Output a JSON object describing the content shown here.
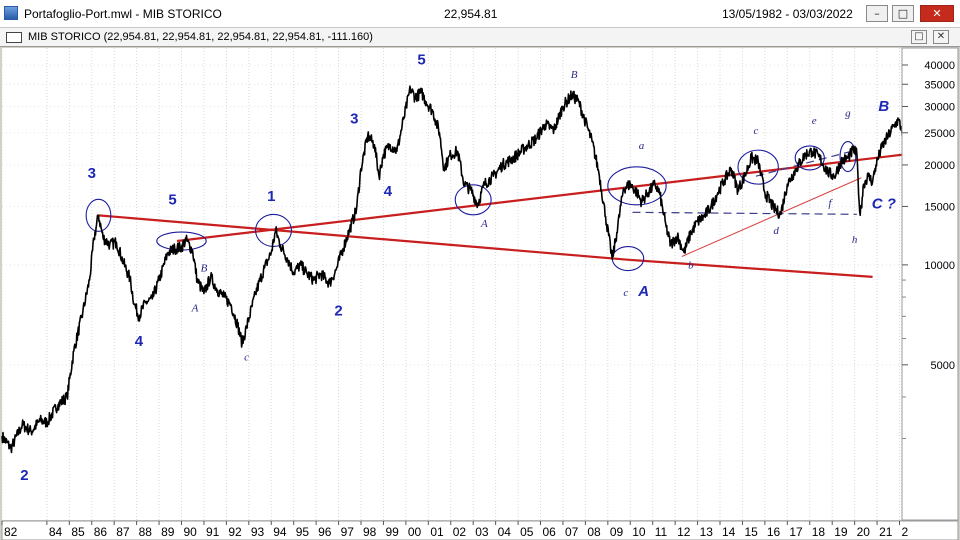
{
  "window": {
    "title": "Portafoglio-Port.mwl  -  MIB STORICO",
    "last_value": "22,954.81",
    "date_range": "13/05/1982 - 03/03/2022",
    "buttons": {
      "minimize": "–",
      "maximize": "□",
      "close": "✕"
    }
  },
  "chart_window": {
    "title": "MIB STORICO (22,954.81, 22,954.81, 22,954.81, 22,954.81, -111.160)",
    "buttons": {
      "restore": "□",
      "close": "✕"
    }
  },
  "chart_data": {
    "type": "line",
    "title": "MIB STORICO",
    "y_scale": "log",
    "ylim": [
      3000,
      45000
    ],
    "xlim": [
      1982.0,
      2022.2
    ],
    "grid": true,
    "y_ticks": [
      {
        "value": 40000,
        "label": "40000"
      },
      {
        "value": 35000,
        "label": "35000"
      },
      {
        "value": 30000,
        "label": "30000"
      },
      {
        "value": 25000,
        "label": "25000"
      },
      {
        "value": 20000,
        "label": "20000"
      },
      {
        "value": 15000,
        "label": "15000"
      },
      {
        "value": 10000,
        "label": "10000"
      },
      {
        "value": 5000,
        "label": "5000"
      }
    ],
    "x_ticks": [
      {
        "x": 1982.0,
        "label": "82"
      },
      {
        "x": 1984.0,
        "label": "84"
      },
      {
        "x": 1985.0,
        "label": "85"
      },
      {
        "x": 1986.0,
        "label": "86"
      },
      {
        "x": 1987.0,
        "label": "87"
      },
      {
        "x": 1988.0,
        "label": "88"
      },
      {
        "x": 1989.0,
        "label": "89"
      },
      {
        "x": 1990.0,
        "label": "90"
      },
      {
        "x": 1991.0,
        "label": "91"
      },
      {
        "x": 1992.0,
        "label": "92"
      },
      {
        "x": 1993.0,
        "label": "93"
      },
      {
        "x": 1994.0,
        "label": "94"
      },
      {
        "x": 1995.0,
        "label": "95"
      },
      {
        "x": 1996.0,
        "label": "96"
      },
      {
        "x": 1997.0,
        "label": "97"
      },
      {
        "x": 1998.0,
        "label": "98"
      },
      {
        "x": 1999.0,
        "label": "99"
      },
      {
        "x": 2000.0,
        "label": "00"
      },
      {
        "x": 2001.0,
        "label": "01"
      },
      {
        "x": 2002.0,
        "label": "02"
      },
      {
        "x": 2003.0,
        "label": "03"
      },
      {
        "x": 2004.0,
        "label": "04"
      },
      {
        "x": 2005.0,
        "label": "05"
      },
      {
        "x": 2006.0,
        "label": "06"
      },
      {
        "x": 2007.0,
        "label": "07"
      },
      {
        "x": 2008.0,
        "label": "08"
      },
      {
        "x": 2009.0,
        "label": "09"
      },
      {
        "x": 2010.0,
        "label": "10"
      },
      {
        "x": 2011.0,
        "label": "11"
      },
      {
        "x": 2012.0,
        "label": "12"
      },
      {
        "x": 2013.0,
        "label": "13"
      },
      {
        "x": 2014.0,
        "label": "14"
      },
      {
        "x": 2015.0,
        "label": "15"
      },
      {
        "x": 2016.0,
        "label": "16"
      },
      {
        "x": 2017.0,
        "label": "17"
      },
      {
        "x": 2018.0,
        "label": "18"
      },
      {
        "x": 2019.0,
        "label": "19"
      },
      {
        "x": 2020.0,
        "label": "20"
      },
      {
        "x": 2021.0,
        "label": "21"
      },
      {
        "x": 2022.0,
        "label": "2"
      }
    ],
    "series": [
      {
        "points": [
          [
            1982.0,
            3050
          ],
          [
            1982.4,
            2800
          ],
          [
            1982.9,
            3300
          ],
          [
            1983.3,
            3150
          ],
          [
            1983.7,
            3400
          ],
          [
            1984.0,
            3350
          ],
          [
            1984.5,
            3800
          ],
          [
            1984.9,
            4000
          ],
          [
            1985.2,
            5500
          ],
          [
            1985.6,
            7200
          ],
          [
            1985.9,
            9000
          ],
          [
            1986.1,
            12000
          ],
          [
            1986.3,
            14100
          ],
          [
            1986.5,
            12100
          ],
          [
            1986.8,
            11500
          ],
          [
            1987.1,
            11700
          ],
          [
            1987.4,
            10200
          ],
          [
            1987.7,
            9100
          ],
          [
            1987.9,
            7600
          ],
          [
            1988.1,
            7000
          ],
          [
            1988.4,
            7700
          ],
          [
            1988.7,
            7900
          ],
          [
            1989.0,
            9000
          ],
          [
            1989.4,
            10900
          ],
          [
            1989.7,
            11200
          ],
          [
            1990.0,
            11300
          ],
          [
            1990.2,
            11900
          ],
          [
            1990.5,
            11000
          ],
          [
            1990.7,
            9000
          ],
          [
            1991.0,
            8200
          ],
          [
            1991.3,
            9200
          ],
          [
            1991.6,
            8400
          ],
          [
            1991.9,
            8000
          ],
          [
            1992.2,
            7600
          ],
          [
            1992.5,
            6600
          ],
          [
            1992.7,
            5800
          ],
          [
            1992.9,
            6500
          ],
          [
            1993.3,
            8200
          ],
          [
            1993.7,
            9800
          ],
          [
            1994.0,
            10900
          ],
          [
            1994.2,
            12700
          ],
          [
            1994.4,
            11500
          ],
          [
            1994.7,
            10500
          ],
          [
            1995.0,
            9500
          ],
          [
            1995.3,
            10000
          ],
          [
            1995.6,
            9400
          ],
          [
            1995.9,
            9000
          ],
          [
            1996.2,
            9400
          ],
          [
            1996.6,
            8800
          ],
          [
            1996.9,
            9700
          ],
          [
            1997.2,
            11200
          ],
          [
            1997.5,
            12800
          ],
          [
            1997.8,
            14700
          ],
          [
            1998.0,
            19500
          ],
          [
            1998.3,
            24500
          ],
          [
            1998.6,
            23000
          ],
          [
            1998.8,
            18500
          ],
          [
            1999.0,
            21500
          ],
          [
            1999.3,
            23000
          ],
          [
            1999.6,
            22000
          ],
          [
            1999.9,
            27500
          ],
          [
            2000.2,
            34000
          ],
          [
            2000.4,
            32000
          ],
          [
            2000.7,
            33000
          ],
          [
            2000.9,
            31000
          ],
          [
            2001.2,
            29000
          ],
          [
            2001.5,
            25000
          ],
          [
            2001.7,
            19500
          ],
          [
            2002.0,
            21500
          ],
          [
            2002.3,
            22000
          ],
          [
            2002.6,
            17500
          ],
          [
            2002.9,
            16800
          ],
          [
            2003.2,
            15200
          ],
          [
            2003.5,
            17500
          ],
          [
            2003.9,
            18500
          ],
          [
            2004.3,
            20000
          ],
          [
            2004.8,
            21000
          ],
          [
            2005.3,
            22500
          ],
          [
            2005.8,
            24000
          ],
          [
            2006.2,
            26500
          ],
          [
            2006.6,
            25500
          ],
          [
            2007.0,
            30000
          ],
          [
            2007.4,
            32500
          ],
          [
            2007.7,
            31000
          ],
          [
            2008.0,
            27000
          ],
          [
            2008.3,
            23500
          ],
          [
            2008.6,
            19000
          ],
          [
            2008.9,
            14000
          ],
          [
            2009.2,
            10400
          ],
          [
            2009.4,
            12500
          ],
          [
            2009.7,
            17000
          ],
          [
            2010.0,
            17500
          ],
          [
            2010.3,
            16500
          ],
          [
            2010.5,
            15500
          ],
          [
            2010.8,
            16500
          ],
          [
            2011.1,
            17500
          ],
          [
            2011.3,
            16500
          ],
          [
            2011.6,
            13000
          ],
          [
            2011.8,
            11500
          ],
          [
            2012.1,
            12200
          ],
          [
            2012.4,
            10900
          ],
          [
            2012.7,
            12500
          ],
          [
            2013.0,
            13500
          ],
          [
            2013.3,
            14000
          ],
          [
            2013.6,
            15000
          ],
          [
            2013.9,
            16500
          ],
          [
            2014.2,
            18000
          ],
          [
            2014.5,
            19500
          ],
          [
            2014.8,
            16800
          ],
          [
            2015.1,
            18500
          ],
          [
            2015.4,
            21000
          ],
          [
            2015.7,
            20500
          ],
          [
            2016.0,
            16500
          ],
          [
            2016.4,
            14800
          ],
          [
            2016.7,
            14200
          ],
          [
            2017.0,
            17500
          ],
          [
            2017.4,
            19500
          ],
          [
            2017.8,
            21500
          ],
          [
            2018.1,
            22000
          ],
          [
            2018.4,
            21200
          ],
          [
            2018.8,
            19000
          ],
          [
            2019.1,
            18500
          ],
          [
            2019.4,
            20500
          ],
          [
            2019.7,
            21000
          ],
          [
            2019.95,
            22200
          ],
          [
            2020.1,
            21500
          ],
          [
            2020.2,
            15500
          ],
          [
            2020.25,
            14100
          ],
          [
            2020.4,
            17500
          ],
          [
            2020.6,
            18500
          ],
          [
            2020.8,
            17800
          ],
          [
            2020.95,
            20000
          ],
          [
            2021.2,
            22500
          ],
          [
            2021.5,
            24500
          ],
          [
            2021.8,
            26500
          ],
          [
            2021.95,
            27300
          ],
          [
            2022.1,
            25500
          ],
          [
            2022.2,
            22950
          ]
        ]
      }
    ],
    "trendlines": [
      {
        "style": "solid",
        "color": "#c81e1e",
        "from": [
          1986.3,
          14100
        ],
        "to": [
          2010.0,
          10350
        ]
      },
      {
        "style": "solid",
        "color": "#c81e1e",
        "to_edge": true,
        "from": [
          2010.0,
          10350
        ],
        "to": [
          2020.8,
          9200
        ]
      },
      {
        "style": "solid",
        "color": "#c81e1e",
        "from": [
          1989.8,
          11800
        ],
        "to": [
          2022.2,
          21500
        ]
      },
      {
        "style": "solid_thin",
        "color": "#d84040",
        "from": [
          2012.3,
          10600
        ],
        "to": [
          2020.3,
          18300
        ]
      },
      {
        "style": "dashed",
        "color": "#3c3c8c",
        "from": [
          2010.1,
          14400
        ],
        "to": [
          2020.1,
          14200
        ]
      },
      {
        "style": "dashed",
        "color": "#3c3c8c",
        "from": [
          2015.6,
          18500
        ],
        "to": [
          2020.1,
          22200
        ]
      }
    ],
    "ellipses": [
      {
        "cx": 1986.3,
        "cy": 14100,
        "rx": 0.55,
        "ry": 1.6
      },
      {
        "cx": 1990.0,
        "cy": 11800,
        "rx": 1.1,
        "ry": 0.9
      },
      {
        "cx": 1994.1,
        "cy": 12700,
        "rx": 0.8,
        "ry": 1.6
      },
      {
        "cx": 2003.0,
        "cy": 15700,
        "rx": 0.8,
        "ry": 1.5
      },
      {
        "cx": 2010.3,
        "cy": 17300,
        "rx": 1.3,
        "ry": 1.9
      },
      {
        "cx": 2009.9,
        "cy": 10450,
        "rx": 0.7,
        "ry": 1.2
      },
      {
        "cx": 2015.7,
        "cy": 19700,
        "rx": 0.9,
        "ry": 1.7
      },
      {
        "cx": 2018.0,
        "cy": 21000,
        "rx": 0.65,
        "ry": 1.2
      },
      {
        "cx": 2019.7,
        "cy": 21200,
        "rx": 0.35,
        "ry": 1.5
      }
    ],
    "annotations": [
      {
        "text": "3",
        "x": 1986.0,
        "y": 18300,
        "size": "big"
      },
      {
        "text": "5",
        "x": 1989.6,
        "y": 15200,
        "size": "big"
      },
      {
        "text": "1",
        "x": 1994.0,
        "y": 15600,
        "size": "big"
      },
      {
        "text": "3",
        "x": 1997.7,
        "y": 26700,
        "size": "big"
      },
      {
        "text": "5",
        "x": 2000.7,
        "y": 40200,
        "size": "big"
      },
      {
        "text": "4",
        "x": 1999.2,
        "y": 16100,
        "size": "big"
      },
      {
        "text": "4",
        "x": 1988.1,
        "y": 5700,
        "size": "big"
      },
      {
        "text": "2",
        "x": 1997.0,
        "y": 7050,
        "size": "big"
      },
      {
        "text": "2",
        "x": 1983.0,
        "y": 2250,
        "size": "big"
      },
      {
        "text": "A",
        "x": 2010.6,
        "y": 8050,
        "size": "big"
      },
      {
        "text": "B",
        "x": 2021.3,
        "y": 29100,
        "size": "big"
      },
      {
        "text": "C ?",
        "x": 2021.3,
        "y": 14800,
        "size": "big"
      },
      {
        "text": "B",
        "x": 1991.0,
        "y": 9550,
        "size": "small"
      },
      {
        "text": "A",
        "x": 1990.6,
        "y": 7250,
        "size": "small"
      },
      {
        "text": "c",
        "x": 1992.9,
        "y": 5150,
        "size": "small"
      },
      {
        "text": "A",
        "x": 2003.5,
        "y": 13000,
        "size": "small"
      },
      {
        "text": "B",
        "x": 2007.5,
        "y": 36500,
        "size": "small"
      },
      {
        "text": "a",
        "x": 2010.5,
        "y": 22300,
        "size": "small"
      },
      {
        "text": "c",
        "x": 2009.8,
        "y": 8050,
        "size": "small"
      },
      {
        "text": "b",
        "x": 2012.7,
        "y": 9750,
        "size": "small"
      },
      {
        "text": "c",
        "x": 2015.6,
        "y": 24800,
        "size": "small"
      },
      {
        "text": "d",
        "x": 2016.5,
        "y": 12400,
        "size": "small"
      },
      {
        "text": "e",
        "x": 2018.2,
        "y": 26600,
        "size": "small"
      },
      {
        "text": "f",
        "x": 2018.9,
        "y": 15000,
        "size": "small"
      },
      {
        "text": "g",
        "x": 2019.7,
        "y": 28000,
        "size": "small"
      },
      {
        "text": "h",
        "x": 2020.0,
        "y": 11650,
        "size": "small"
      }
    ]
  }
}
